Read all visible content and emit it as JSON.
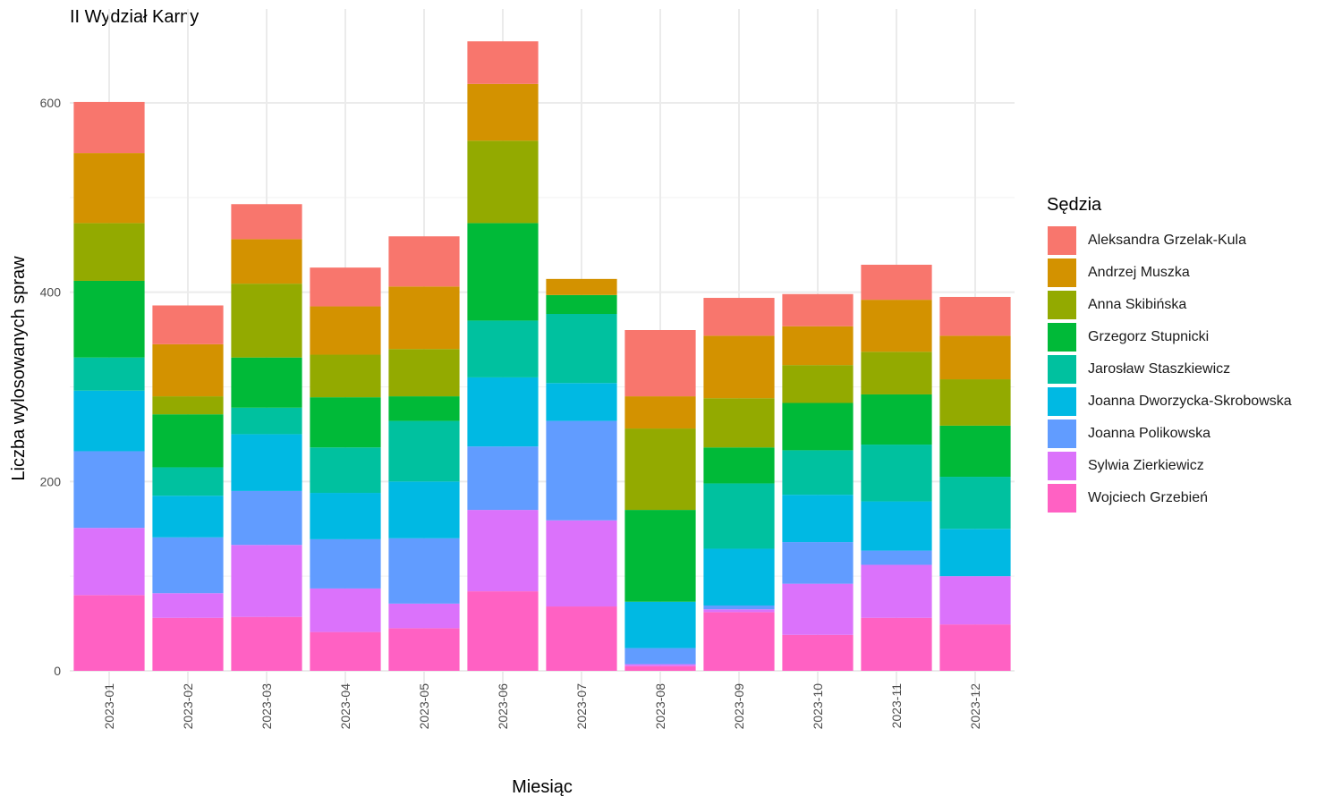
{
  "chart_data": {
    "type": "bar",
    "stacked": true,
    "title": "II Wydział Karny",
    "xlabel": "Miesiąc",
    "ylabel": "Liczba wylosowanych spraw",
    "ylim": [
      0,
      670
    ],
    "yticks": [
      0,
      200,
      400,
      600
    ],
    "grid": true,
    "legend_title": "Sędzia",
    "legend_position": "right",
    "categories": [
      "2023-01",
      "2023-02",
      "2023-03",
      "2023-04",
      "2023-05",
      "2023-06",
      "2023-07",
      "2023-08",
      "2023-09",
      "2023-10",
      "2023-11",
      "2023-12"
    ],
    "series": [
      {
        "name": "Wojciech Grzebień",
        "color": "#FF61C3",
        "values": [
          80,
          56,
          57,
          41,
          45,
          84,
          68,
          5,
          62,
          38,
          56,
          49
        ]
      },
      {
        "name": "Sylwia Zierkiewicz",
        "color": "#DB72FB",
        "values": [
          71,
          26,
          76,
          46,
          26,
          86,
          91,
          2,
          3,
          54,
          56,
          51
        ]
      },
      {
        "name": "Joanna Polikowska",
        "color": "#619CFF",
        "values": [
          81,
          59,
          57,
          52,
          69,
          67,
          105,
          17,
          4,
          44,
          15,
          0
        ]
      },
      {
        "name": "Joanna Dworzycka-Skrobowska",
        "color": "#00B9E3",
        "values": [
          64,
          44,
          60,
          49,
          60,
          73,
          40,
          49,
          60,
          50,
          52,
          50
        ]
      },
      {
        "name": "Jarosław Staszkiewicz",
        "color": "#00C19F",
        "values": [
          35,
          30,
          28,
          48,
          64,
          60,
          73,
          0,
          69,
          47,
          60,
          55
        ]
      },
      {
        "name": "Grzegorz Stupnicki",
        "color": "#00BA38",
        "values": [
          81,
          56,
          53,
          53,
          26,
          103,
          20,
          97,
          38,
          50,
          53,
          54
        ]
      },
      {
        "name": "Anna Skibińska",
        "color": "#93AA00",
        "values": [
          61,
          19,
          78,
          45,
          50,
          87,
          0,
          86,
          52,
          40,
          45,
          49
        ]
      },
      {
        "name": "Andrzej Muszka",
        "color": "#D39200",
        "values": [
          74,
          55,
          47,
          51,
          66,
          60,
          17,
          34,
          66,
          41,
          55,
          46
        ]
      },
      {
        "name": "Aleksandra Grzelak-Kula",
        "color": "#F8766D",
        "values": [
          54,
          41,
          37,
          41,
          53,
          45,
          0,
          70,
          40,
          34,
          37,
          41
        ]
      }
    ]
  }
}
